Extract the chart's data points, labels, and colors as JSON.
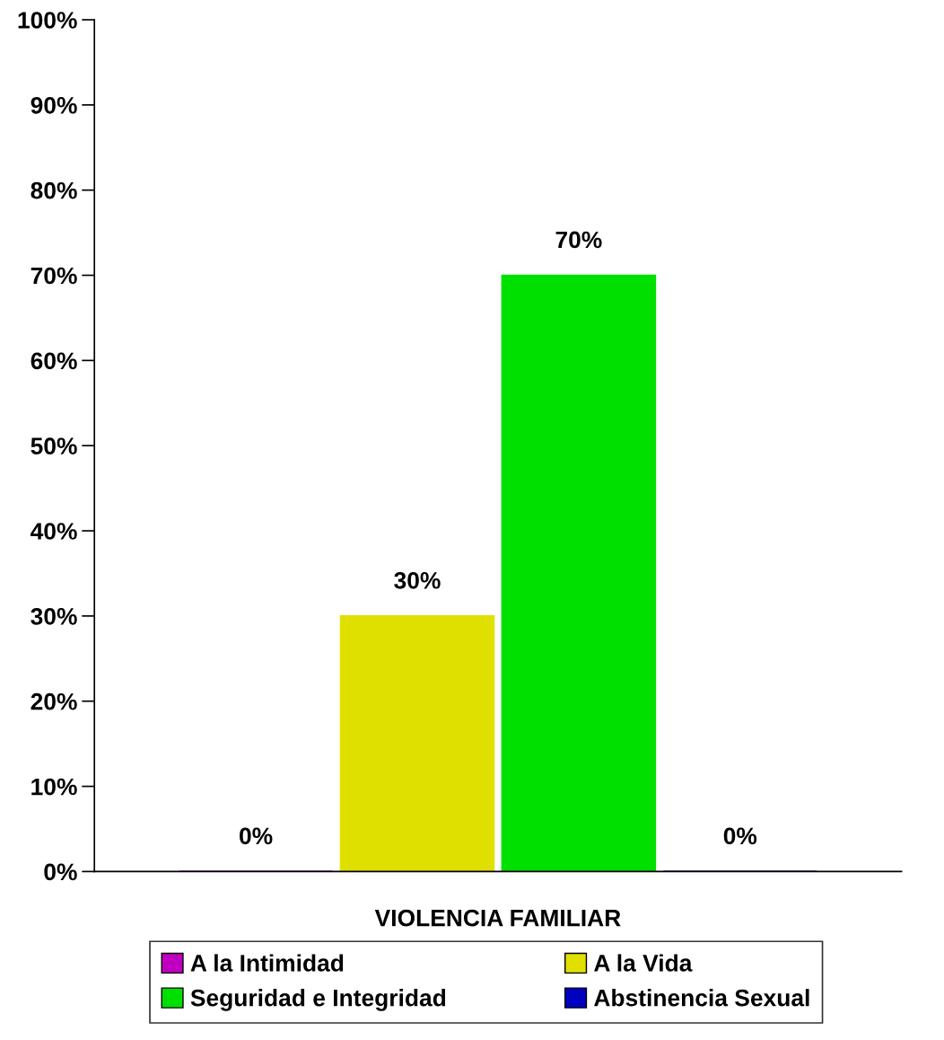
{
  "chart_data": {
    "type": "bar",
    "categories": [
      "VIOLENCIA FAMILIAR"
    ],
    "series": [
      {
        "name": "A la Intimidad",
        "color": "#c000c0",
        "values": [
          0
        ],
        "value_labels": [
          "0%"
        ]
      },
      {
        "name": "A la Vida",
        "color": "#e0e000",
        "values": [
          30
        ],
        "value_labels": [
          "30%"
        ]
      },
      {
        "name": "Seguridad e Integridad",
        "color": "#00e000",
        "values": [
          70
        ],
        "value_labels": [
          "70%"
        ]
      },
      {
        "name": "Abstinencia Sexual",
        "color": "#0000c0",
        "values": [
          0
        ],
        "value_labels": [
          "0%"
        ]
      }
    ],
    "ylim": [
      0,
      100
    ],
    "yticks": [
      {
        "value": 0,
        "label": "0%"
      },
      {
        "value": 10,
        "label": "10%"
      },
      {
        "value": 20,
        "label": "20%"
      },
      {
        "value": 30,
        "label": "30%"
      },
      {
        "value": 40,
        "label": "40%"
      },
      {
        "value": 50,
        "label": "50%"
      },
      {
        "value": 60,
        "label": "60%"
      },
      {
        "value": 70,
        "label": "70%"
      },
      {
        "value": 80,
        "label": "80%"
      },
      {
        "value": 90,
        "label": "90%"
      },
      {
        "value": 100,
        "label": "100%"
      }
    ],
    "grid": false,
    "legend": "bottom"
  }
}
